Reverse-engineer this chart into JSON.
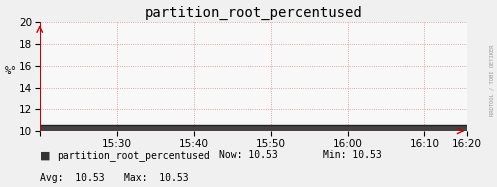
{
  "title": "partition_root_percentused",
  "ylabel": "%°",
  "ylim": [
    10,
    20
  ],
  "yticks": [
    10,
    12,
    14,
    16,
    18,
    20
  ],
  "xlim": [
    0,
    100
  ],
  "xtick_positions": [
    0,
    18,
    36,
    54,
    72,
    90,
    100
  ],
  "xtick_labels": [
    "",
    "15:30",
    "15:40",
    "15:50",
    "16:00",
    "16:10",
    "16:20"
  ],
  "data_value": 10.53,
  "line_color": "#222222",
  "fill_color": "#444444",
  "bg_color": "#f0f0f0",
  "plot_bg_color": "#f8f8f8",
  "grid_color": "#dd8888",
  "title_fontsize": 10,
  "axis_fontsize": 7.5,
  "legend_label": "partition_root_percentused",
  "legend_color": "#333333",
  "now_val": "10.53",
  "min_val": "10.53",
  "avg_val": "10.53",
  "max_val": "10.53",
  "watermark": "RRDTOOL / TOBI OETIKER",
  "arrow_color": "#cc0000"
}
